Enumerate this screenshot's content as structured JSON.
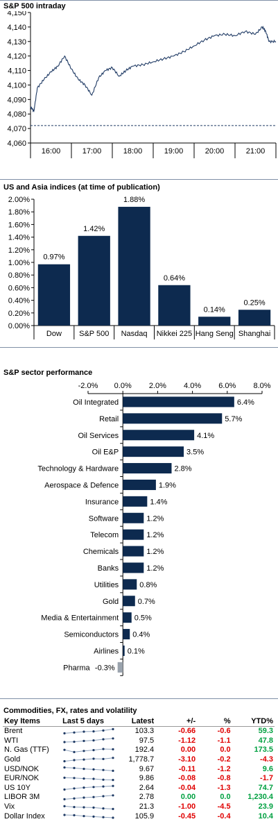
{
  "colors": {
    "bar": "#0d2a4f",
    "line": "#1f3a64",
    "neg": "#e00000",
    "pos": "#00a040",
    "neg_bar": "#9aa3ad"
  },
  "intraday": {
    "title": "S&P 500 intraday",
    "y_ticks": [
      "4,150",
      "4,140",
      "4,130",
      "4,120",
      "4,110",
      "4,100",
      "4,090",
      "4,080",
      "4,070",
      "4,060"
    ],
    "x_ticks": [
      "16:00",
      "17:00",
      "18:00",
      "19:00",
      "20:00",
      "21:00"
    ]
  },
  "us_asia": {
    "title": "US and Asia indices (at time of publication)",
    "y_ticks": [
      "2.00%",
      "1.80%",
      "1.60%",
      "1.40%",
      "1.20%",
      "1.00%",
      "0.80%",
      "0.60%",
      "0.40%",
      "0.20%",
      "0.00%"
    ],
    "labels": [
      "0.97%",
      "1.42%",
      "1.88%",
      "0.64%",
      "0.14%",
      "0.25%"
    ]
  },
  "sector": {
    "title": "S&P sector performance",
    "x_ticks": [
      "-2.0%",
      "0.0%",
      "2.0%",
      "4.0%",
      "6.0%",
      "8.0%"
    ],
    "labels": [
      "6.4%",
      "5.7%",
      "4.1%",
      "3.5%",
      "2.8%",
      "1.9%",
      "1.4%",
      "1.2%",
      "1.2%",
      "1.2%",
      "1.2%",
      "0.8%",
      "0.7%",
      "0.5%",
      "0.4%",
      "0.1%",
      "-0.3%"
    ]
  },
  "table": {
    "title": "Commodities, FX, rates and volatility",
    "headers": {
      "item": "Key Items",
      "last5": "Last 5 days",
      "latest": "Latest",
      "change": "+/-",
      "pct": "%",
      "ytd": "YTD%"
    },
    "rows": [
      {
        "name": "Brent",
        "latest": "103.3",
        "change": "-0.66",
        "pct": "-0.6",
        "ytd": "59.3",
        "spark": [
          0.2,
          0.35,
          0.5,
          0.55,
          0.7,
          0.95
        ]
      },
      {
        "name": "WTI",
        "latest": "97.5",
        "change": "-1.12",
        "pct": "-1.1",
        "ytd": "47.8",
        "spark": [
          0.25,
          0.3,
          0.45,
          0.55,
          0.75,
          0.9
        ]
      },
      {
        "name": "N. Gas (TTF)",
        "latest": "192.4",
        "change": "0.00",
        "pct": "0.0",
        "ytd": "173.5",
        "spark": [
          0.6,
          0.2,
          0.4,
          0.55,
          0.75,
          0.7
        ]
      },
      {
        "name": "Gold",
        "latest": "1,778.7",
        "change": "-3.10",
        "pct": "-0.2",
        "ytd": "-4.3",
        "spark": [
          0.3,
          0.5,
          0.6,
          0.75,
          0.7,
          0.9
        ]
      },
      {
        "name": "USD/NOK",
        "latest": "9.67",
        "change": "-0.11",
        "pct": "-1.2",
        "ytd": "9.6",
        "spark": [
          0.8,
          0.7,
          0.55,
          0.45,
          0.35,
          0.2
        ]
      },
      {
        "name": "EUR/NOK",
        "latest": "9.86",
        "change": "-0.08",
        "pct": "-0.8",
        "ytd": "-1.7",
        "spark": [
          0.7,
          0.65,
          0.55,
          0.5,
          0.35,
          0.3
        ]
      },
      {
        "name": "US 10Y",
        "latest": "2.64",
        "change": "-0.04",
        "pct": "-1.3",
        "ytd": "74.7",
        "spark": [
          0.2,
          0.4,
          0.55,
          0.65,
          0.75,
          0.85
        ]
      },
      {
        "name": "LIBOR 3M",
        "latest": "2.78",
        "change": "0.00",
        "pct": "0.0",
        "ytd": "1,230.4",
        "spark": [
          0.2,
          0.35,
          0.5,
          0.6,
          0.75,
          0.9
        ]
      },
      {
        "name": "Vix",
        "latest": "21.3",
        "change": "-1.00",
        "pct": "-4.5",
        "ytd": "23.9",
        "spark": [
          0.7,
          0.55,
          0.5,
          0.45,
          0.3,
          0.2
        ]
      },
      {
        "name": "Dollar Index",
        "latest": "105.9",
        "change": "-0.45",
        "pct": "-0.4",
        "ytd": "10.4",
        "spark": [
          0.75,
          0.7,
          0.55,
          0.45,
          0.35,
          0.25
        ]
      }
    ]
  },
  "chart_data": [
    {
      "type": "line",
      "title": "S&P 500 intraday",
      "x": [
        "15:30",
        "15:35",
        "15:40",
        "15:50",
        "16:00",
        "16:10",
        "16:20",
        "16:30",
        "16:40",
        "16:50",
        "17:00",
        "17:10",
        "17:20",
        "17:30",
        "17:40",
        "17:50",
        "18:00",
        "18:15",
        "18:30",
        "18:45",
        "19:00",
        "19:15",
        "19:30",
        "19:45",
        "20:00",
        "20:15",
        "20:30",
        "20:45",
        "21:00",
        "21:10",
        "21:15",
        "21:20",
        "21:30"
      ],
      "series": [
        {
          "values": [
            4085,
            4082,
            4098,
            4104,
            4109,
            4113,
            4120,
            4111,
            4104,
            4100,
            4093,
            4105,
            4110,
            4112,
            4106,
            4110,
            4113,
            4114,
            4116,
            4118,
            4120,
            4123,
            4127,
            4131,
            4134,
            4135,
            4134,
            4137,
            4135,
            4140,
            4137,
            4130,
            4130
          ]
        }
      ],
      "reference_line": 4072,
      "ylim": [
        4060,
        4150
      ]
    },
    {
      "type": "bar",
      "title": "US and Asia indices (at time of publication)",
      "categories": [
        "Dow",
        "S&P 500",
        "Nasdaq",
        "Nikkei 225",
        "Hang Seng",
        "Shanghai"
      ],
      "values": [
        0.97,
        1.42,
        1.88,
        0.64,
        0.14,
        0.25
      ],
      "ylim": [
        0,
        2.0
      ]
    },
    {
      "type": "bar",
      "orientation": "horizontal",
      "title": "S&P sector performance",
      "categories": [
        "Oil Integrated",
        "Retail",
        "Oil Services",
        "Oil E&P",
        "Technology & Hardware",
        "Aerospace & Defence",
        "Insurance",
        "Software",
        "Telecom",
        "Chemicals",
        "Banks",
        "Utilities",
        "Gold",
        "Media & Entertainment",
        "Semiconductors",
        "Airlines",
        "Pharma"
      ],
      "values": [
        6.4,
        5.7,
        4.1,
        3.5,
        2.8,
        1.9,
        1.4,
        1.2,
        1.2,
        1.2,
        1.2,
        0.8,
        0.7,
        0.5,
        0.4,
        0.1,
        -0.3
      ],
      "xlim": [
        -2.0,
        8.0
      ]
    }
  ]
}
